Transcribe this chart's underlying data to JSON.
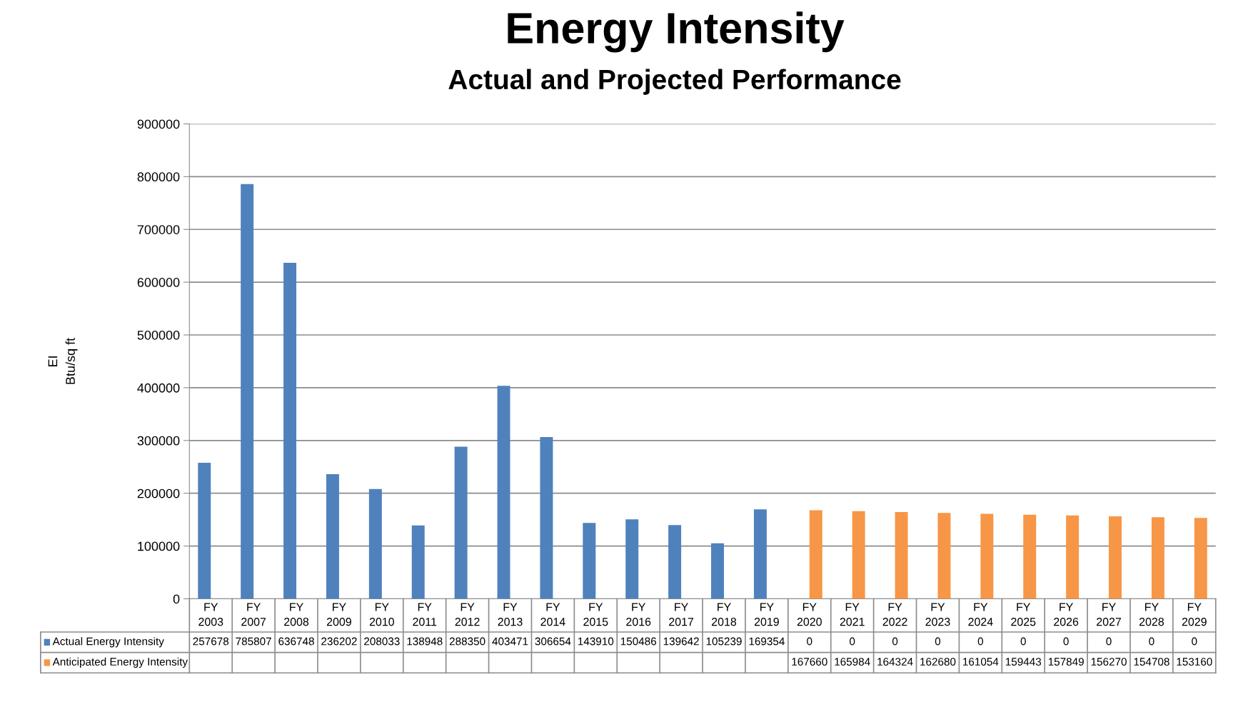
{
  "chart_data": {
    "type": "bar",
    "title": "Energy Intensity",
    "subtitle": "Actual and Projected Performance",
    "ylabel": "EI\nBtu/sq ft",
    "categories": [
      "FY\n2003",
      "FY\n2007",
      "FY\n2008",
      "FY\n2009",
      "FY\n2010",
      "FY\n2011",
      "FY\n2012",
      "FY\n2013",
      "FY\n2014",
      "FY\n2015",
      "FY\n2016",
      "FY\n2017",
      "FY\n2018",
      "FY\n2019",
      "FY\n2020",
      "FY\n2021",
      "FY\n2022",
      "FY\n2023",
      "FY\n2024",
      "FY\n2025",
      "FY\n2026",
      "FY\n2027",
      "FY\n2028",
      "FY\n2029"
    ],
    "series": [
      {
        "name": "Actual Energy Intensity",
        "color": "#4f81bd",
        "values": [
          257678,
          785807,
          636748,
          236202,
          208033,
          138948,
          288350,
          403471,
          306654,
          143910,
          150486,
          139642,
          105239,
          169354,
          0,
          0,
          0,
          0,
          0,
          0,
          0,
          0,
          0,
          0
        ]
      },
      {
        "name": "Anticipated Energy Intensity",
        "color": "#f79646",
        "values": [
          null,
          null,
          null,
          null,
          null,
          null,
          null,
          null,
          null,
          null,
          null,
          null,
          null,
          null,
          167660,
          165984,
          164324,
          162680,
          161054,
          159443,
          157849,
          156270,
          154708,
          153160
        ]
      }
    ],
    "ylim": [
      0,
      900000
    ],
    "yticks": [
      0,
      100000,
      200000,
      300000,
      400000,
      500000,
      600000,
      700000,
      800000,
      900000
    ],
    "grid": "y",
    "legend": "bottom",
    "data_labels": true
  }
}
